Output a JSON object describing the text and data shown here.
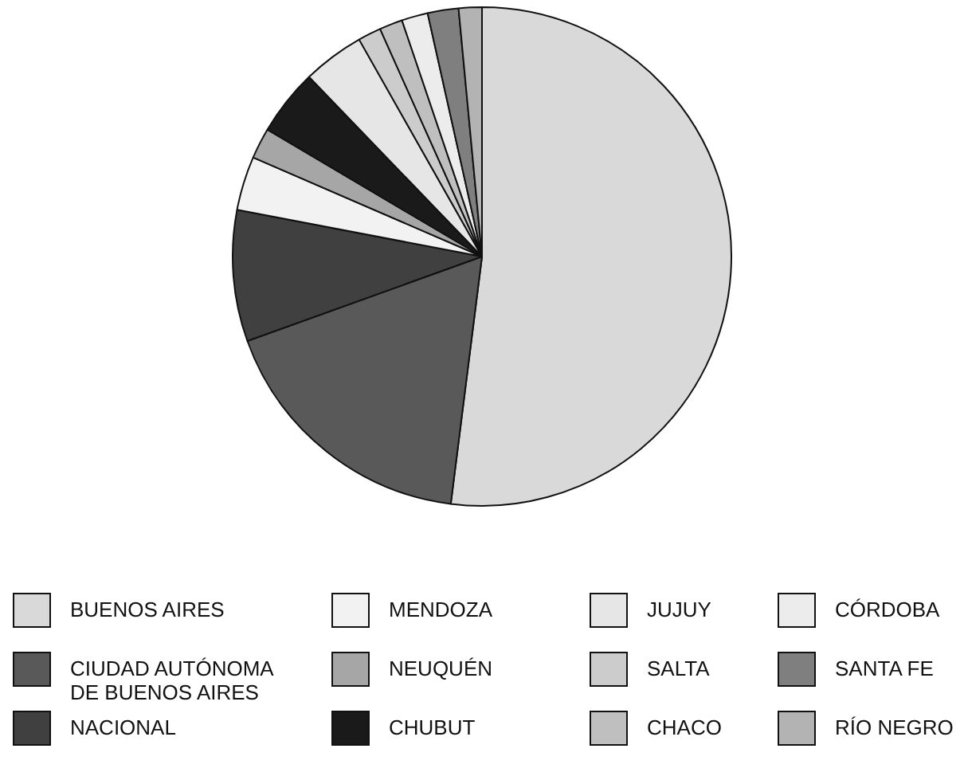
{
  "chart_data": {
    "type": "pie",
    "categories": [
      "BUENOS AIRES",
      "CIUDAD AUTÓNOMA DE BUENOS AIRES",
      "NACIONAL",
      "MENDOZA",
      "NEUQUÉN",
      "CHUBUT",
      "JUJUY",
      "SALTA",
      "CHACO",
      "CÓRDOBA",
      "SANTA FE",
      "RÍO NEGRO"
    ],
    "values": [
      52,
      17.5,
      8.5,
      3.5,
      2,
      4.3,
      4,
      1.5,
      1.5,
      1.7,
      2,
      1.5
    ],
    "colors": [
      "#d9d9d9",
      "#595959",
      "#404040",
      "#f2f2f2",
      "#a6a6a6",
      "#1a1a1a",
      "#e6e6e6",
      "#cccccc",
      "#bfbfbf",
      "#ececec",
      "#7f7f7f",
      "#b3b3b3"
    ],
    "legend": "bottom"
  }
}
